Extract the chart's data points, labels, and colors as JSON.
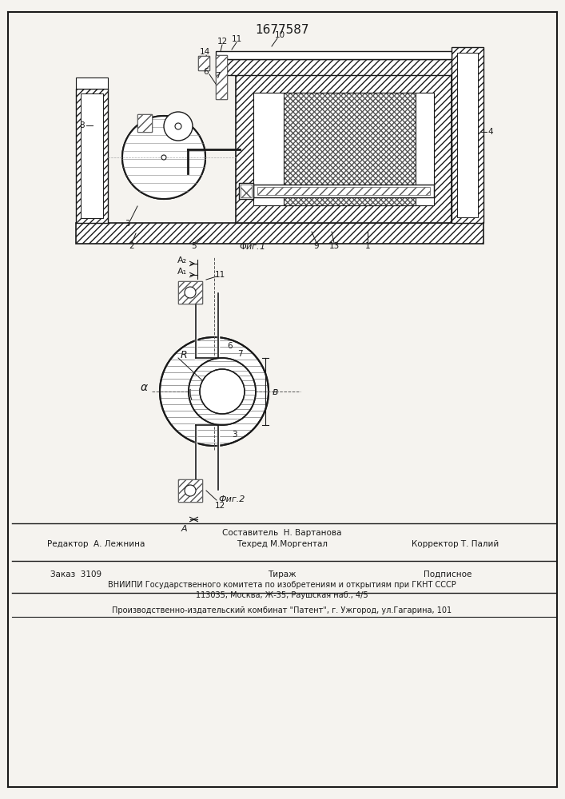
{
  "patent_number": "1677587",
  "fig1_caption": "Фиг.1",
  "fig2_caption": "Фиг.2",
  "editor_line": "Редактор  А. Лежнина",
  "compiler_line": "Составитель  Н. Вартанова",
  "techred_line": "Техред М.Моргентал",
  "corrector_line": "Корректор Т. Палий",
  "order_line": "Заказ  3109",
  "tirazh_line": "Тираж",
  "podpisnoe_line": "Подписное",
  "vniiipi_line": "ВНИИПИ Государственного комитета по изобретениям и открытиям при ГКНТ СССР",
  "address_line": "113035, Москва, Ж-35, Раушская наб., 4/5",
  "patent_line": "Производственно-издательский комбинат \"Патент\", г. Ужгород, ул.Гагарина, 101",
  "bg_color": "#f5f3ef",
  "line_color": "#1a1a1a"
}
